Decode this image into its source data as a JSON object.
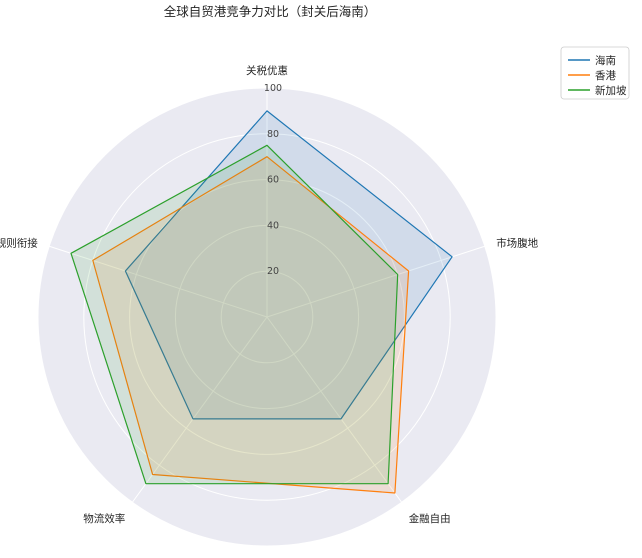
{
  "chart_data": {
    "type": "radar",
    "title": "全球自贸港竞争力对比（封关后海南）",
    "categories": [
      "关税优惠",
      "市场腹地",
      "金融自由",
      "物流效率",
      "规则衔接"
    ],
    "rlim": [
      0,
      100
    ],
    "rticks": [
      20,
      40,
      60,
      80,
      100
    ],
    "grid": true,
    "legend_position": "top-right",
    "series": [
      {
        "name": "海南",
        "color": "#1f77b4",
        "values": [
          90,
          85,
          55,
          55,
          65
        ]
      },
      {
        "name": "香港",
        "color": "#ff7f0e",
        "values": [
          70,
          65,
          95,
          85,
          80
        ]
      },
      {
        "name": "新加坡",
        "color": "#2ca02c",
        "values": [
          75,
          60,
          90,
          90,
          90
        ]
      }
    ]
  }
}
